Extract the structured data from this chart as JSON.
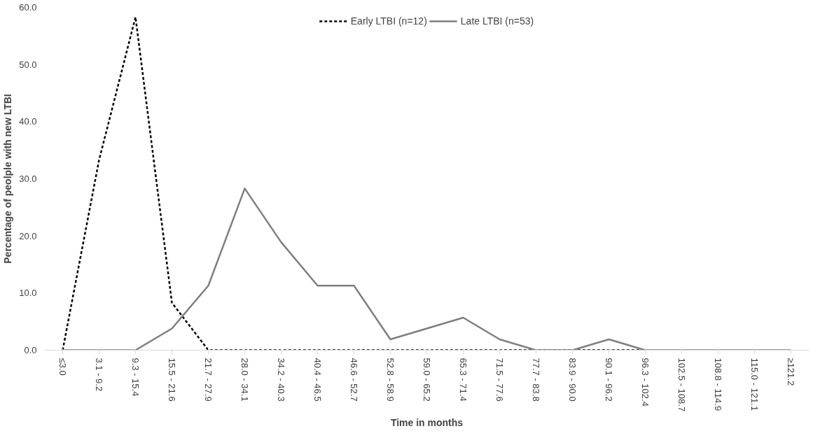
{
  "chart_data": {
    "type": "line",
    "xlabel": "Time in months",
    "ylabel": "Percentage of peolple with new LTBI",
    "categories": [
      "≤3.0",
      "3.1 - 9.2",
      "9.3 - 15.4",
      "15.5 - 21.6",
      "21.7 - 27.9",
      "28.0 - 34.1",
      "34.2 - 40.3",
      "40.4 - 46.5",
      "46.6 - 52.7",
      "52.8 - 58.9",
      "59.0 - 65.2",
      "65.3 - 71.4",
      "71.5 - 77.6",
      "77.7 - 83.8",
      "83.9 - 90.0",
      "90.1 - 96.2",
      "96.3 - 102.4",
      "102.5 - 108.7",
      "108.8 - 114.9",
      "115.0 - 121.1",
      "≥121.2"
    ],
    "series": [
      {
        "name": "Early LTBI (n=12)",
        "color": "#000000",
        "line_style": "dashed",
        "values": [
          0,
          33.3,
          58.3,
          8.3,
          0,
          0,
          0,
          0,
          0,
          0,
          0,
          0,
          0,
          0,
          0,
          0,
          0,
          null,
          null,
          null,
          null
        ]
      },
      {
        "name": "Late LTBI (n=53)",
        "color": "#7f7f7f",
        "line_style": "solid",
        "values": [
          0,
          0,
          0,
          3.8,
          11.3,
          28.3,
          18.9,
          11.3,
          11.3,
          1.9,
          3.8,
          5.7,
          1.9,
          0,
          0,
          1.9,
          0,
          0,
          0,
          0,
          0
        ]
      }
    ],
    "ylim": [
      0,
      60
    ],
    "yticks": [
      {
        "value": 0,
        "label": "0.0"
      },
      {
        "value": 10,
        "label": "10.0"
      },
      {
        "value": 20,
        "label": "20.0"
      },
      {
        "value": 30,
        "label": "30.0"
      },
      {
        "value": 40,
        "label": "40.0"
      },
      {
        "value": 50,
        "label": "50.0"
      },
      {
        "value": 60,
        "label": "60.0"
      }
    ],
    "grid": false,
    "legend": "top",
    "marker": "none"
  }
}
